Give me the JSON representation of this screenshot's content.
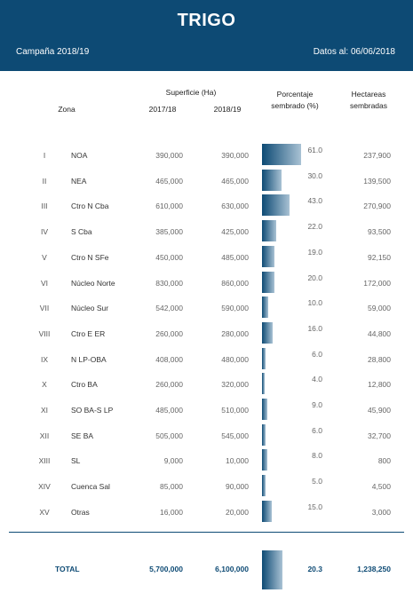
{
  "header": {
    "title": "TRIGO",
    "campaign": "Campaña 2018/19",
    "date": "Datos al: 06/06/2018"
  },
  "columns": {
    "zona": "Zona",
    "superficie": "Superficie (Ha)",
    "year1": "2017/18",
    "year2": "2018/19",
    "pct_line1": "Porcentaje",
    "pct_line2": "sembrado (%)",
    "hec_line1": "Hectareas",
    "hec_line2": "sembradas"
  },
  "rows": [
    {
      "roman": "I",
      "zona": "NOA",
      "s1": "390,000",
      "s2": "390,000",
      "pct": "61.0",
      "hec": "237,900"
    },
    {
      "roman": "II",
      "zona": "NEA",
      "s1": "465,000",
      "s2": "465,000",
      "pct": "30.0",
      "hec": "139,500"
    },
    {
      "roman": "III",
      "zona": "Ctro N Cba",
      "s1": "610,000",
      "s2": "630,000",
      "pct": "43.0",
      "hec": "270,900"
    },
    {
      "roman": "IV",
      "zona": "S Cba",
      "s1": "385,000",
      "s2": "425,000",
      "pct": "22.0",
      "hec": "93,500"
    },
    {
      "roman": "V",
      "zona": "Ctro N SFe",
      "s1": "450,000",
      "s2": "485,000",
      "pct": "19.0",
      "hec": "92,150"
    },
    {
      "roman": "VI",
      "zona": "Núcleo Norte",
      "s1": "830,000",
      "s2": "860,000",
      "pct": "20.0",
      "hec": "172,000"
    },
    {
      "roman": "VII",
      "zona": "Núcleo Sur",
      "s1": "542,000",
      "s2": "590,000",
      "pct": "10.0",
      "hec": "59,000"
    },
    {
      "roman": "VIII",
      "zona": "Ctro E ER",
      "s1": "260,000",
      "s2": "280,000",
      "pct": "16.0",
      "hec": "44,800"
    },
    {
      "roman": "IX",
      "zona": "N LP-OBA",
      "s1": "408,000",
      "s2": "480,000",
      "pct": "6.0",
      "hec": "28,800"
    },
    {
      "roman": "X",
      "zona": "Ctro BA",
      "s1": "260,000",
      "s2": "320,000",
      "pct": "4.0",
      "hec": "12,800"
    },
    {
      "roman": "XI",
      "zona": "SO BA-S LP",
      "s1": "485,000",
      "s2": "510,000",
      "pct": "9.0",
      "hec": "45,900"
    },
    {
      "roman": "XII",
      "zona": "SE BA",
      "s1": "505,000",
      "s2": "545,000",
      "pct": "6.0",
      "hec": "32,700"
    },
    {
      "roman": "XIII",
      "zona": "SL",
      "s1": "9,000",
      "s2": "10,000",
      "pct": "8.0",
      "hec": "800"
    },
    {
      "roman": "XIV",
      "zona": "Cuenca Sal",
      "s1": "85,000",
      "s2": "90,000",
      "pct": "5.0",
      "hec": "4,500"
    },
    {
      "roman": "XV",
      "zona": "Otras",
      "s1": "16,000",
      "s2": "20,000",
      "pct": "15.0",
      "hec": "3,000"
    }
  ],
  "total": {
    "label": "TOTAL",
    "s1": "5,700,000",
    "s2": "6,100,000",
    "pct": "20.3",
    "hec": "1,238,250"
  },
  "colors": {
    "accent": "#0d4a74",
    "bar_light": "#a9c2d4"
  }
}
